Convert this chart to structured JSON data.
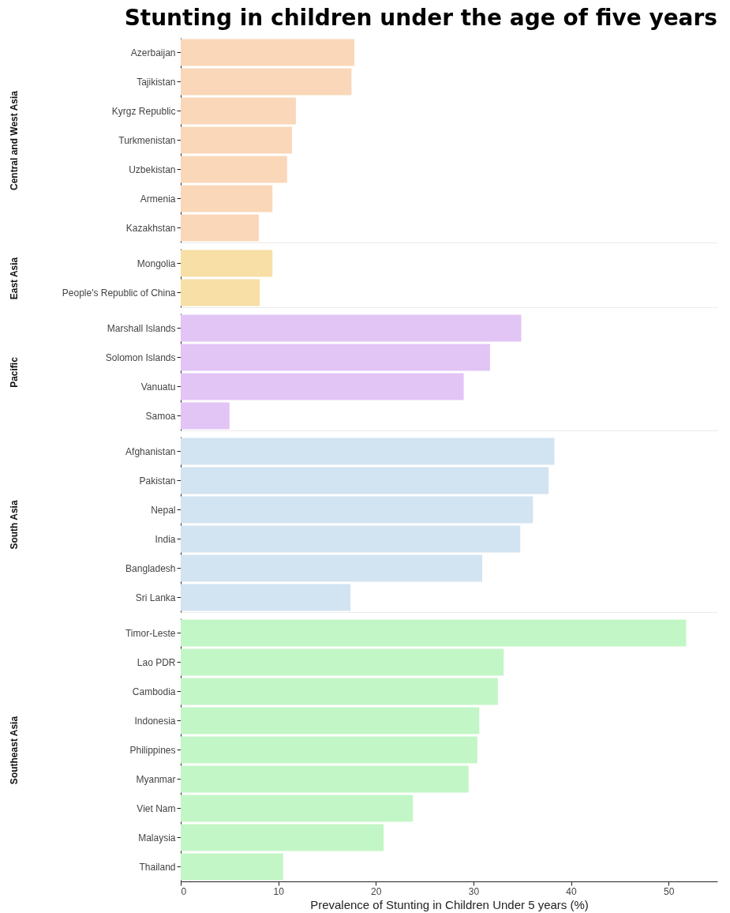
{
  "chart_data": [
    {
      "type": "bar",
      "orientation": "horizontal",
      "title": "Stunting in children under the age of five years",
      "ylabel": "Central and West Asia",
      "categories": [
        "Azerbaijan",
        "Tajikistan",
        "Kyrgz Republic",
        "Turkmenistan",
        "Uzbekistan",
        "Armenia",
        "Kazakhstan"
      ],
      "values": [
        17.8,
        17.5,
        11.8,
        11.4,
        10.9,
        9.4,
        8.0
      ],
      "color": "#f9d7b8",
      "xlim": [
        0,
        55
      ],
      "xticks": [
        0,
        10,
        20,
        30,
        40,
        50
      ],
      "tick_labels": "y"
    },
    {
      "type": "bar",
      "orientation": "horizontal",
      "ylabel": "East Asia",
      "categories": [
        "Mongolia",
        "People's Republic of China"
      ],
      "values": [
        9.4,
        8.1
      ],
      "color": "#f7dfa6",
      "xlim": [
        0,
        55
      ],
      "xticks": [
        0,
        10,
        20,
        30,
        40,
        50
      ],
      "tick_labels": "y"
    },
    {
      "type": "bar",
      "orientation": "horizontal",
      "ylabel": "Pacific",
      "categories": [
        "Marshall Islands",
        "Solomon Islands",
        "Vanuatu",
        "Samoa"
      ],
      "values": [
        34.9,
        31.7,
        29.0,
        5.0
      ],
      "color": "#e2c4f5",
      "xlim": [
        0,
        55
      ],
      "xticks": [
        0,
        10,
        20,
        30,
        40,
        50
      ],
      "tick_labels": "y"
    },
    {
      "type": "bar",
      "orientation": "horizontal",
      "ylabel": "South Asia",
      "categories": [
        "Afghanistan",
        "Pakistan",
        "Nepal",
        "India",
        "Bangladesh",
        "Sri Lanka"
      ],
      "values": [
        38.3,
        37.7,
        36.1,
        34.8,
        30.9,
        17.4
      ],
      "color": "#d2e3f1",
      "xlim": [
        0,
        55
      ],
      "xticks": [
        0,
        10,
        20,
        30,
        40,
        50
      ],
      "tick_labels": "y"
    },
    {
      "type": "bar",
      "orientation": "horizontal",
      "ylabel": "Southeast Asia",
      "xlabel": "Prevalence of Stunting in Children Under 5 years (%)",
      "categories": [
        "Timor-Leste",
        "Lao PDR",
        "Cambodia",
        "Indonesia",
        "Philippines",
        "Myanmar",
        "Viet Nam",
        "Malaysia",
        "Thailand"
      ],
      "values": [
        51.8,
        33.1,
        32.5,
        30.6,
        30.4,
        29.5,
        23.8,
        20.8,
        10.5
      ],
      "color": "#c3f6c6",
      "xlim": [
        0,
        55
      ],
      "xticks": [
        0,
        10,
        20,
        30,
        40,
        50
      ]
    }
  ]
}
